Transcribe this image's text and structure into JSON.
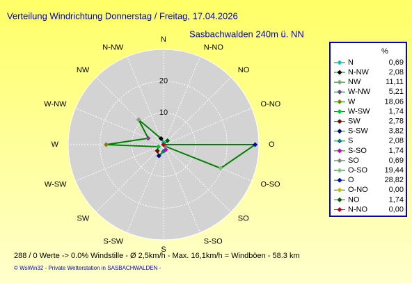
{
  "chart_data": {
    "type": "windrose",
    "title": "Verteilung Windrichtung  Donnerstag / Freitag, 17.04.2026",
    "subtitle": "Sasbachwalden  240m ü. NN",
    "unit_header": "%",
    "categories": [
      "N",
      "N-NW",
      "NW",
      "W-NW",
      "W",
      "W-SW",
      "SW",
      "S-SW",
      "S",
      "S-SO",
      "SO",
      "O-SO",
      "O",
      "O-NO",
      "NO",
      "N-NO"
    ],
    "values": [
      0.69,
      2.08,
      11.11,
      5.21,
      18.06,
      1.74,
      2.78,
      3.82,
      2.08,
      1.74,
      0.69,
      19.44,
      28.82,
      0.0,
      1.74,
      0.0
    ],
    "value_labels": [
      "0,69",
      "2,08",
      "11,11",
      "5,21",
      "18,06",
      "1,74",
      "2,78",
      "3,82",
      "2,08",
      "1,74",
      "0,69",
      "19,44",
      "28,82",
      "0,00",
      "1,74",
      "0,00"
    ],
    "marker_colors": [
      "#00c0c0",
      "#000000",
      "#80a080",
      "#804080",
      "#808000",
      "#00c040",
      "#800000",
      "#000080",
      "#008080",
      "#c000c0",
      "#808080",
      "#80c080",
      "#0000c0",
      "#c0c000",
      "#006000",
      "#c00000"
    ],
    "line_color": "#008000",
    "rlim": [
      0,
      30
    ],
    "rticks": [
      10,
      20
    ],
    "footer": "288 / 0 Werte  -> 0.0% Windstille   -   Ø 2,5km/h   -   Max. 16,1km/h = Windböen   -   58.3 km",
    "copyright": "© WsWin32  -  Private Wetterstation in SASBACHWALDEN  -"
  }
}
